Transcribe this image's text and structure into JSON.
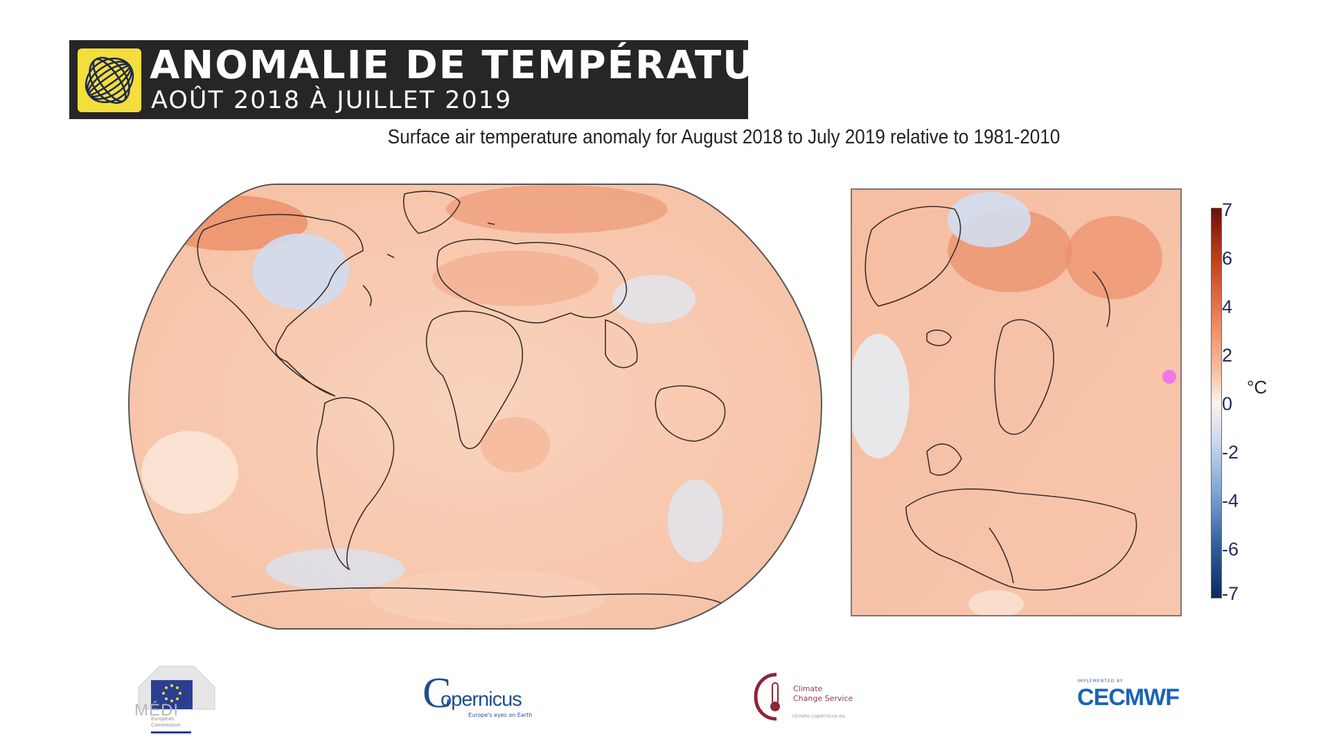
{
  "banner": {
    "title": "ANOMALIE DE TEMPÉRATURE",
    "subtitle": "AOÛT 2018 À JUILLET 2019",
    "logo_icon": "globe-sphere-icon",
    "logo_color": "#f3de3c",
    "background_color": "#262626"
  },
  "map_title": "Surface air temperature anomaly for August 2018 to July 2019 relative to 1981-2010",
  "maps": {
    "world": {
      "name": "world-map",
      "projection": "robinson"
    },
    "europe": {
      "name": "europe-regional-map"
    }
  },
  "colorbar": {
    "ticks": [
      "7",
      "6",
      "4",
      "2",
      "0",
      "-2",
      "-4",
      "-6",
      "-7"
    ],
    "unit": "°C",
    "warm_color": "#c4441d",
    "neutral_color": "#fdf2ec",
    "cold_color": "#33619f"
  },
  "footer_logos": {
    "eu": {
      "watermark": "MÉDI",
      "caption": "European Commission"
    },
    "copernicus": {
      "text": "opernicus",
      "initial": "C",
      "tagline": "Europe's eyes on Earth"
    },
    "c3s": {
      "title_line1": "Climate",
      "title_line2": "Change Service",
      "url": "climate.copernicus.eu"
    },
    "ecmwf": {
      "tagline": "IMPLEMENTED BY",
      "text": "ECMWF"
    }
  },
  "marker_color": "#ee78e9"
}
